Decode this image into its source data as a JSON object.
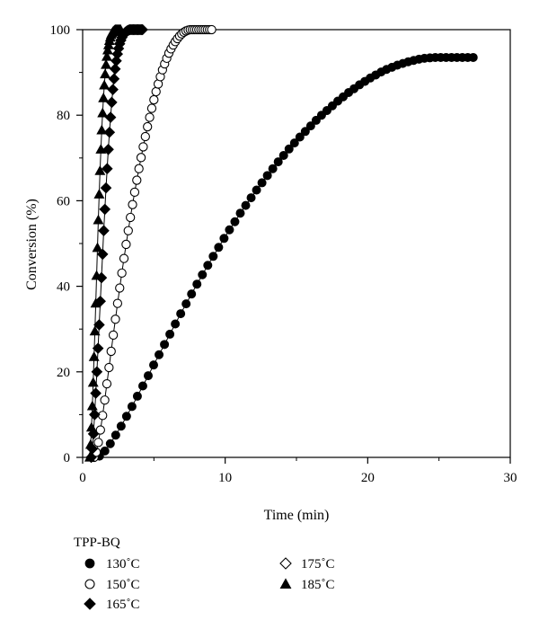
{
  "chart_data": {
    "type": "scatter",
    "xlabel": "Time (min)",
    "ylabel": "Conversion (%)",
    "xlim": [
      0,
      30
    ],
    "ylim": [
      0,
      100
    ],
    "x_ticks": [
      0,
      10,
      20,
      30
    ],
    "y_ticks": [
      0,
      20,
      40,
      60,
      80,
      100
    ],
    "grid": false,
    "legend_title": "TPP-BQ",
    "legend_placement": "bottom-left",
    "series": [
      {
        "name": "130˚C",
        "marker": "circle-filled",
        "color": "#000000",
        "x": [
          0.8,
          1.18,
          1.56,
          1.94,
          2.32,
          2.7,
          3.08,
          3.46,
          3.84,
          4.22,
          4.6,
          4.98,
          5.36,
          5.74,
          6.12,
          6.5,
          6.88,
          7.26,
          7.64,
          8.02,
          8.4,
          8.78,
          9.16,
          9.54,
          9.92,
          10.3,
          10.68,
          11.06,
          11.44,
          11.82,
          12.2,
          12.58,
          12.96,
          13.34,
          13.72,
          14.1,
          14.48,
          14.86,
          15.24,
          15.62,
          16.0,
          16.38,
          16.76,
          17.14,
          17.52,
          17.9,
          18.28,
          18.66,
          19.04,
          19.42,
          19.8,
          20.18,
          20.56,
          20.94,
          21.32,
          21.7,
          22.08,
          22.46,
          22.84,
          23.22,
          23.6,
          23.98,
          24.36,
          24.74,
          25.12,
          25.5,
          25.88,
          26.26,
          26.64,
          27.02,
          27.4
        ],
        "y": [
          0.0,
          0.3,
          1.5,
          3.2,
          5.2,
          7.3,
          9.6,
          11.9,
          14.3,
          16.7,
          19.1,
          21.6,
          24.0,
          26.4,
          28.8,
          31.2,
          33.6,
          35.9,
          38.2,
          40.5,
          42.7,
          44.9,
          47.0,
          49.1,
          51.2,
          53.2,
          55.1,
          57.1,
          58.9,
          60.7,
          62.5,
          64.2,
          65.9,
          67.5,
          69.1,
          70.6,
          72.1,
          73.5,
          74.9,
          76.2,
          77.5,
          78.8,
          80.0,
          81.1,
          82.2,
          83.3,
          84.3,
          85.3,
          86.2,
          87.1,
          87.9,
          88.7,
          89.4,
          90.1,
          90.7,
          91.2,
          91.7,
          92.1,
          92.5,
          92.8,
          93.1,
          93.3,
          93.4,
          93.5,
          93.5,
          93.5,
          93.5,
          93.5,
          93.5,
          93.5,
          93.5
        ]
      },
      {
        "name": "150˚C",
        "marker": "circle-open",
        "color": "#000000",
        "x": [
          0.8,
          0.95,
          1.1,
          1.25,
          1.4,
          1.55,
          1.7,
          1.85,
          2.0,
          2.15,
          2.3,
          2.45,
          2.6,
          2.75,
          2.9,
          3.05,
          3.2,
          3.35,
          3.5,
          3.65,
          3.8,
          3.95,
          4.1,
          4.25,
          4.4,
          4.55,
          4.7,
          4.85,
          5.0,
          5.15,
          5.3,
          5.45,
          5.6,
          5.75,
          5.9,
          6.05,
          6.2,
          6.35,
          6.5,
          6.65,
          6.8,
          6.95,
          7.1,
          7.25,
          7.4,
          7.55,
          7.7,
          7.85,
          8.0,
          8.15,
          8.3,
          8.45,
          8.6,
          8.75,
          8.9,
          9.05
        ],
        "y": [
          0.0,
          1.2,
          3.5,
          6.4,
          9.8,
          13.4,
          17.2,
          21.0,
          24.8,
          28.6,
          32.3,
          36.0,
          39.6,
          43.1,
          46.5,
          49.8,
          53.0,
          56.1,
          59.1,
          62.0,
          64.8,
          67.5,
          70.1,
          72.6,
          75.0,
          77.3,
          79.5,
          81.6,
          83.6,
          85.5,
          87.3,
          89.0,
          90.6,
          92.0,
          93.3,
          94.5,
          95.5,
          96.4,
          97.2,
          97.9,
          98.5,
          99.0,
          99.4,
          99.7,
          99.9,
          100.0,
          100.0,
          100.0,
          100.0,
          100.0,
          100.0,
          100.0,
          100.0,
          100.0,
          100.0,
          100.0
        ]
      },
      {
        "name": "165˚C",
        "marker": "diamond-filled",
        "color": "#000000",
        "x": [
          0.6,
          0.68,
          0.76,
          0.84,
          0.92,
          1.0,
          1.08,
          1.16,
          1.24,
          1.32,
          1.4,
          1.48,
          1.56,
          1.64,
          1.72,
          1.8,
          1.88,
          1.96,
          2.04,
          2.12,
          2.2,
          2.28,
          2.36,
          2.44,
          2.52,
          2.6,
          2.68,
          2.76,
          2.84,
          2.92,
          3.0,
          3.08,
          3.16,
          3.24,
          3.32,
          3.4,
          3.48,
          3.56,
          3.64,
          3.72,
          3.8,
          3.88,
          3.96,
          4.04,
          4.12,
          4.2
        ],
        "y": [
          0.0,
          2.0,
          5.5,
          10.0,
          15.0,
          20.0,
          25.5,
          31.0,
          36.5,
          42.0,
          47.5,
          53.0,
          58.0,
          63.0,
          67.5,
          72.0,
          76.0,
          79.5,
          83.0,
          86.0,
          88.5,
          90.8,
          92.7,
          94.3,
          95.6,
          96.7,
          97.5,
          98.2,
          98.7,
          99.1,
          99.4,
          99.6,
          99.8,
          99.9,
          100.0,
          100.0,
          100.0,
          100.0,
          100.0,
          100.0,
          100.0,
          100.0,
          100.0,
          100.0,
          100.0,
          100.0
        ]
      },
      {
        "name": "175˚C",
        "marker": "diamond-open",
        "color": "#000000",
        "x": [],
        "y": []
      },
      {
        "name": "185˚C",
        "marker": "triangle-filled",
        "color": "#000000",
        "x": [
          0.5,
          0.56,
          0.62,
          0.68,
          0.74,
          0.8,
          0.86,
          0.92,
          0.98,
          1.04,
          1.1,
          1.16,
          1.22,
          1.28,
          1.34,
          1.4,
          1.46,
          1.52,
          1.58,
          1.64,
          1.7,
          1.76,
          1.82,
          1.88,
          1.94,
          2.0,
          2.06,
          2.12,
          2.18,
          2.24,
          2.3,
          2.36,
          2.42,
          2.48,
          2.54,
          2.6,
          2.66
        ],
        "y": [
          0.0,
          3.0,
          7.0,
          12.0,
          17.5,
          23.5,
          29.5,
          36.0,
          42.5,
          49.0,
          55.5,
          61.5,
          67.0,
          72.0,
          76.5,
          80.5,
          84.0,
          87.0,
          89.6,
          91.8,
          93.7,
          95.2,
          96.4,
          97.4,
          98.2,
          98.8,
          99.2,
          99.5,
          99.7,
          99.9,
          100.0,
          100.0,
          100.0,
          100.0,
          100.0,
          100.0,
          100.0
        ]
      }
    ]
  }
}
